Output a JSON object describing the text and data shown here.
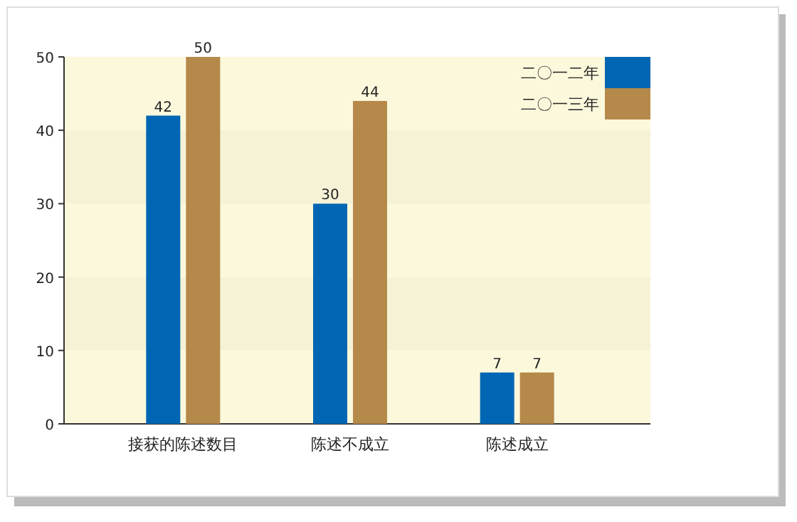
{
  "chart_data": {
    "type": "bar",
    "categories": [
      "接获的陈述数目",
      "陈述不成立",
      "陈述成立"
    ],
    "series": [
      {
        "name": "二〇一二年",
        "color": "#0066b3",
        "values": [
          42,
          30,
          7
        ]
      },
      {
        "name": "二〇一三年",
        "color": "#b5894a",
        "values": [
          50,
          44,
          7
        ]
      }
    ],
    "ylim": [
      0,
      50
    ],
    "yticks": [
      0,
      10,
      20,
      30,
      40,
      50
    ],
    "legend": "top right",
    "data_labels": true
  }
}
